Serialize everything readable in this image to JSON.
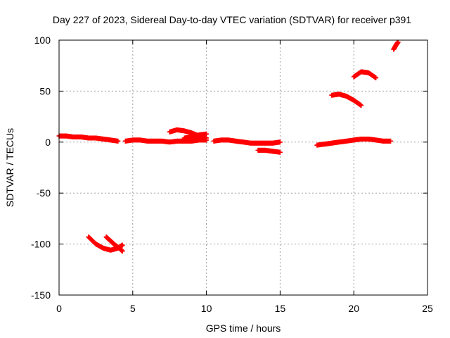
{
  "chart_data": {
    "type": "scatter",
    "title": "Day 227 of 2023, Sidereal Day-to-day VTEC variation (SDTVAR) for receiver p391",
    "xlabel": "GPS time / hours",
    "ylabel": "SDTVAR / TECUs",
    "xlim": [
      0,
      25
    ],
    "ylim": [
      -150,
      100
    ],
    "xticks": [
      0,
      5,
      10,
      15,
      20,
      25
    ],
    "yticks": [
      -150,
      -100,
      -50,
      0,
      50,
      100
    ],
    "grid": true,
    "marker": "plus",
    "color": "#ff0000",
    "series": [
      {
        "name": "track-a",
        "points": [
          [
            0.0,
            6
          ],
          [
            0.5,
            6
          ],
          [
            1.0,
            5
          ],
          [
            1.5,
            5
          ],
          [
            2.0,
            4
          ],
          [
            2.5,
            4
          ],
          [
            3.0,
            3
          ],
          [
            3.5,
            2
          ],
          [
            4.0,
            1
          ]
        ]
      },
      {
        "name": "track-b",
        "points": [
          [
            4.5,
            1
          ],
          [
            5.0,
            2
          ],
          [
            5.5,
            2
          ],
          [
            6.0,
            1
          ],
          [
            6.5,
            1
          ],
          [
            7.0,
            1
          ],
          [
            7.5,
            0
          ],
          [
            8.0,
            1
          ],
          [
            8.5,
            1
          ],
          [
            9.0,
            1
          ],
          [
            9.5,
            2
          ],
          [
            10.0,
            2
          ]
        ]
      },
      {
        "name": "track-c",
        "points": [
          [
            7.5,
            10
          ],
          [
            8.0,
            12
          ],
          [
            8.5,
            11
          ],
          [
            9.0,
            9
          ],
          [
            9.5,
            6
          ],
          [
            10.0,
            4
          ]
        ]
      },
      {
        "name": "track-d",
        "points": [
          [
            8.5,
            4
          ],
          [
            9.0,
            5
          ],
          [
            9.5,
            7
          ],
          [
            10.0,
            8
          ]
        ]
      },
      {
        "name": "track-e",
        "points": [
          [
            10.5,
            1
          ],
          [
            11.0,
            2
          ],
          [
            11.5,
            2
          ],
          [
            12.0,
            1
          ],
          [
            12.5,
            0
          ],
          [
            13.0,
            -1
          ],
          [
            13.5,
            -1
          ],
          [
            14.0,
            -1
          ],
          [
            14.5,
            -1
          ],
          [
            15.0,
            0
          ]
        ]
      },
      {
        "name": "track-f",
        "points": [
          [
            13.5,
            -8
          ],
          [
            14.0,
            -8
          ],
          [
            14.5,
            -9
          ],
          [
            15.0,
            -10
          ]
        ]
      },
      {
        "name": "track-g",
        "points": [
          [
            17.5,
            -3
          ],
          [
            18.0,
            -2
          ],
          [
            18.5,
            -1
          ],
          [
            19.0,
            0
          ],
          [
            19.5,
            1
          ],
          [
            20.0,
            2
          ],
          [
            20.5,
            3
          ],
          [
            21.0,
            3
          ],
          [
            21.5,
            2
          ],
          [
            22.0,
            1
          ],
          [
            22.5,
            1
          ]
        ]
      },
      {
        "name": "track-h",
        "points": [
          [
            18.5,
            46
          ],
          [
            19.0,
            47
          ],
          [
            19.5,
            45
          ],
          [
            20.0,
            41
          ],
          [
            20.5,
            36
          ]
        ]
      },
      {
        "name": "track-i",
        "points": [
          [
            20.0,
            64
          ],
          [
            20.5,
            69
          ],
          [
            21.0,
            68
          ],
          [
            21.5,
            63
          ]
        ]
      },
      {
        "name": "track-j",
        "points": [
          [
            22.7,
            91
          ],
          [
            22.9,
            96
          ],
          [
            23.0,
            98
          ]
        ]
      },
      {
        "name": "track-k",
        "points": [
          [
            2.0,
            -93
          ],
          [
            2.5,
            -100
          ],
          [
            3.0,
            -104
          ],
          [
            3.5,
            -106
          ],
          [
            4.0,
            -104
          ],
          [
            4.3,
            -101
          ]
        ]
      },
      {
        "name": "track-l",
        "points": [
          [
            3.2,
            -93
          ],
          [
            3.5,
            -97
          ],
          [
            3.8,
            -101
          ],
          [
            4.1,
            -104
          ],
          [
            4.3,
            -107
          ]
        ]
      }
    ]
  }
}
